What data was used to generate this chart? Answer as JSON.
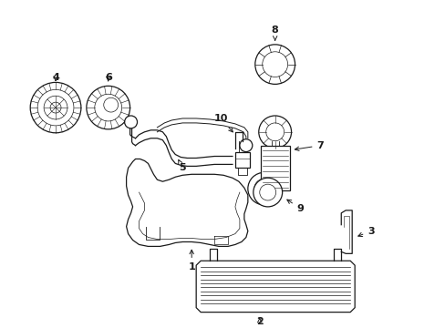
{
  "background": "#ffffff",
  "line_color": "#1a1a1a",
  "figsize": [
    4.89,
    3.6
  ],
  "dpi": 100,
  "tank_color": "#ffffff",
  "skid_color": "#ffffff"
}
